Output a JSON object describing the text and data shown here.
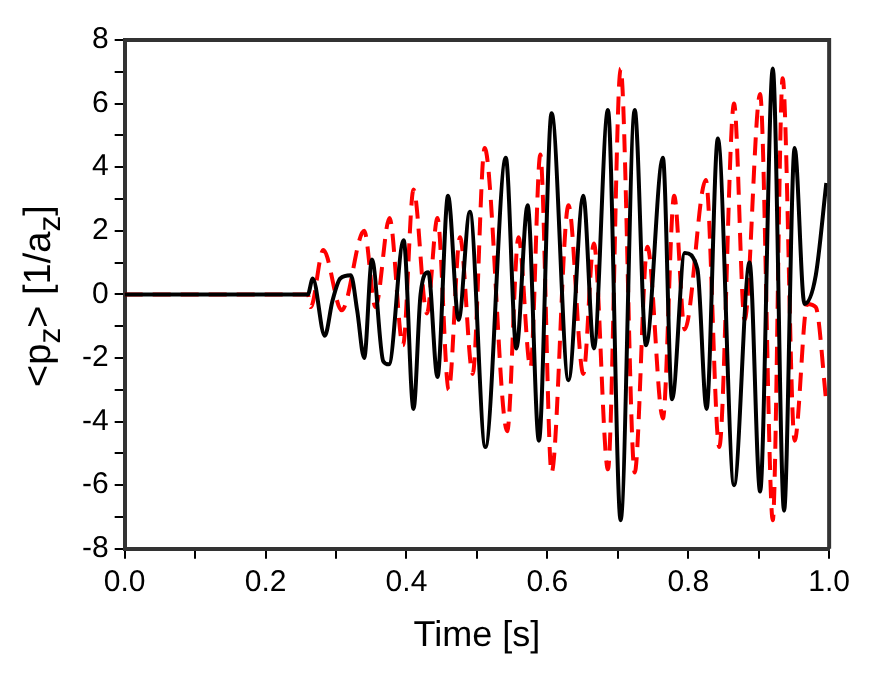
{
  "chart_data": {
    "type": "line",
    "xlabel": "Time [s]",
    "ylabel": "<p$_{z}$> [1/a$_{z}$]",
    "xlim": [
      0,
      1
    ],
    "ylim": [
      -8,
      8
    ],
    "xticks": [
      {
        "value": 0,
        "label": "0.0"
      },
      {
        "value": 0.1,
        "label": null
      },
      {
        "value": 0.2,
        "label": "0.2"
      },
      {
        "value": 0.3,
        "label": null
      },
      {
        "value": 0.4,
        "label": "0.4"
      },
      {
        "value": 0.5,
        "label": null
      },
      {
        "value": 0.6,
        "label": "0.6"
      },
      {
        "value": 0.7,
        "label": null
      },
      {
        "value": 0.8,
        "label": "0.8"
      },
      {
        "value": 0.9,
        "label": null
      },
      {
        "value": 1,
        "label": "1.0"
      }
    ],
    "yticks": [
      -8,
      {
        "value": -7,
        "label": null
      },
      -6,
      {
        "value": -5,
        "label": null
      },
      -4,
      {
        "value": -3,
        "label": null
      },
      -2,
      {
        "value": -1,
        "label": null
      },
      0,
      {
        "value": 1,
        "label": null
      },
      2,
      {
        "value": 3,
        "label": null
      },
      4,
      {
        "value": 5,
        "label": null
      },
      6,
      {
        "value": 7,
        "label": null
      },
      8
    ],
    "grid": false,
    "legend": false,
    "marker": "none",
    "series": [
      {
        "color": "#000000",
        "line_style": "solid",
        "x": [
          0,
          0.26,
          0.267,
          0.284,
          0.295,
          0.306,
          0.321,
          0.33,
          0.34,
          0.351,
          0.367,
          0.375,
          0.396,
          0.41,
          0.42,
          0.431,
          0.444,
          0.459,
          0.474,
          0.49,
          0.512,
          0.541,
          0.556,
          0.572,
          0.588,
          0.606,
          0.63,
          0.651,
          0.666,
          0.686,
          0.704,
          0.724,
          0.74,
          0.764,
          0.777,
          0.795,
          0.813,
          0.826,
          0.842,
          0.865,
          0.887,
          0.902,
          0.92,
          0.936,
          0.951,
          0.965,
          0.981,
          0.996
        ],
        "values": [
          0,
          0,
          0.5,
          -1.3,
          -0.2,
          0.5,
          0.6,
          -0.5,
          -2,
          1.1,
          -2.1,
          -2.2,
          1.7,
          -3.6,
          0,
          0.7,
          -2.6,
          3.1,
          -0.8,
          2.6,
          -4.8,
          4.3,
          -1.7,
          2.8,
          -4.6,
          5.7,
          -2.7,
          3.1,
          -1.7,
          5.8,
          -7.1,
          5.8,
          -1.6,
          4.3,
          -3.3,
          1.3,
          0.8,
          -3.6,
          4.9,
          -6,
          1,
          -6.2,
          7.1,
          -6.8,
          4.6,
          -0.3,
          0.6,
          3.5
        ]
      },
      {
        "color": "#ff0000",
        "line_style": "dashed",
        "x": [
          0,
          0.26,
          0.264,
          0.282,
          0.308,
          0.34,
          0.356,
          0.376,
          0.395,
          0.41,
          0.429,
          0.444,
          0.46,
          0.476,
          0.494,
          0.511,
          0.543,
          0.559,
          0.576,
          0.59,
          0.606,
          0.63,
          0.651,
          0.666,
          0.686,
          0.704,
          0.724,
          0.742,
          0.764,
          0.78,
          0.795,
          0.825,
          0.844,
          0.865,
          0.88,
          0.902,
          0.92,
          0.934,
          0.951,
          0.969,
          0.981,
          0.996
        ],
        "values": [
          0,
          0,
          -0.4,
          1.4,
          -0.5,
          2,
          -0.4,
          2.4,
          -1.6,
          3.3,
          -0.6,
          2.4,
          -3,
          1.8,
          -2.5,
          4.6,
          -4.3,
          1.8,
          -2.3,
          4.4,
          -5.6,
          2.8,
          -2.5,
          1.6,
          -5.5,
          7.1,
          -5.6,
          1.5,
          -3.9,
          3.1,
          -1.1,
          3.6,
          -4.8,
          6,
          -0.8,
          6.3,
          -7.1,
          6.8,
          -4.6,
          -0.3,
          -0.4,
          -3.4
        ]
      }
    ]
  }
}
